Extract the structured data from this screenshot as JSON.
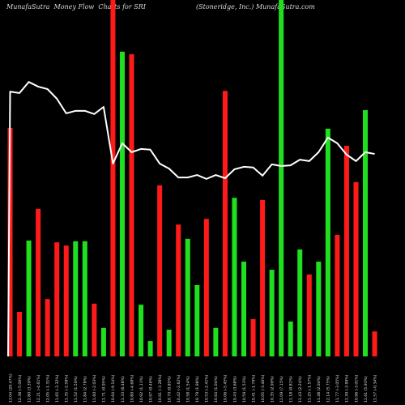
{
  "chart_data": {
    "type": "bar",
    "title": "MunafaSutra  Money Flow  Charts for SRI",
    "subtitle": "(Stoneridge, Inc.) MunafaSutra.com",
    "categories": [
      "13.04 (20.47%)",
      "12.38 (-5.06%)",
      "12.80 (3.39%)",
      "12.21 (-4.61%)",
      "12.05 (-1.31%)",
      "11.65 (-3.32%)",
      "11.35 (-2.58%)",
      "11.52 (1.50%)",
      "11.84 (2.78%)",
      "11.60 (-2.03%)",
      "11.71 (0.95%)",
      "10.64 (-9.14%)",
      "11.33 (6.48%)",
      "10.80 (-4.68%)",
      "10.92 (1.11%)",
      "10.97 (0.46%)",
      "10.61 (-3.28%)",
      "10.70 (0.85%)",
      "10.42 (-2.62%)",
      "10.58 (1.54%)",
      "10.79 (1.98%)",
      "10.53 (-2.41%)",
      "10.64 (1.04%)",
      "10.06 (-5.45%)",
      "10.43 (3.68%)",
      "10.59 (1.53%)",
      "10.41 (-1.70%)",
      "10.05 (-3.46%)",
      "10.35 (2.99%)",
      "11.09 (7.15%)",
      "11.18 (0.81%)",
      "11.43 (2.24%)",
      "11.25 (-1.57%)",
      "11.48 (2.04%)",
      "12.14 (5.75%)",
      "11.77 (-3.05%)",
      "11.30 (-3.99%)",
      "10.96 (-3.01%)",
      "11.61 (5.93%)",
      "11.57 (-0.34%)"
    ],
    "series": [
      {
        "values": [
          64.1,
          12.5,
          32.5,
          41.4,
          16.1,
          32.0,
          31.1,
          32.3,
          32.3,
          14.8,
          8.0,
          100,
          85.5,
          84.8,
          14.5,
          4.3,
          48.0,
          7.5,
          37.0,
          33.0,
          20.0,
          38.6,
          8.0,
          74.5,
          44.5,
          26.6,
          10.5,
          43.9,
          24.3,
          100,
          9.8,
          30.0,
          23.0,
          26.6,
          63.9,
          34.1,
          59.1,
          48.9,
          69.1,
          7.0
        ],
        "colors": [
          "#ff1a1a",
          "#ff1a1a",
          "#1fe01f",
          "#ff1a1a",
          "#ff1a1a",
          "#ff1a1a",
          "#ff1a1a",
          "#1fe01f",
          "#1fe01f",
          "#ff1a1a",
          "#1fe01f",
          "#ff1a1a",
          "#1fe01f",
          "#ff1a1a",
          "#1fe01f",
          "#1fe01f",
          "#ff1a1a",
          "#1fe01f",
          "#ff1a1a",
          "#1fe01f",
          "#1fe01f",
          "#ff1a1a",
          "#1fe01f",
          "#ff1a1a",
          "#1fe01f",
          "#1fe01f",
          "#ff1a1a",
          "#ff1a1a",
          "#1fe01f",
          "#1fe01f",
          "#1fe01f",
          "#1fe01f",
          "#ff1a1a",
          "#1fe01f",
          "#1fe01f",
          "#ff1a1a",
          "#ff1a1a",
          "#ff1a1a",
          "#1fe01f",
          "#ff1a1a"
        ]
      }
    ],
    "line": {
      "values": [
        74.3,
        73.9,
        77.0,
        75.7,
        75.0,
        72.3,
        68.2,
        68.9,
        68.9,
        68.0,
        70.0,
        54.1,
        59.8,
        57.3,
        58.2,
        58.0,
        54.1,
        52.7,
        50.2,
        50.2,
        50.9,
        49.8,
        50.9,
        50.0,
        52.5,
        53.2,
        53.0,
        50.7,
        53.9,
        53.4,
        53.6,
        55.2,
        54.8,
        57.3,
        61.4,
        59.8,
        56.6,
        54.8,
        57.3,
        56.8
      ],
      "color": "#ffffff"
    },
    "ylim": [
      0,
      100
    ],
    "grid": false,
    "legend": false,
    "background": "#000000"
  }
}
